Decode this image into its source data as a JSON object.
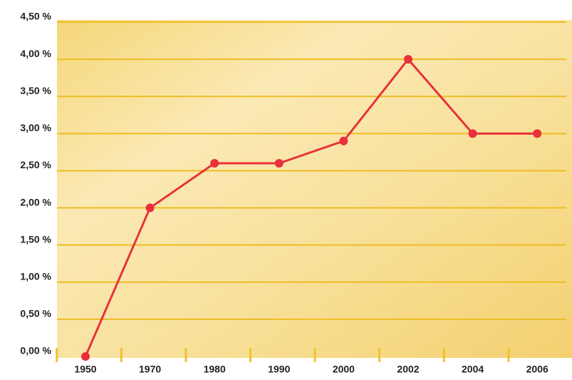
{
  "chart_data": {
    "type": "line",
    "categories": [
      "1950",
      "1970",
      "1980",
      "1990",
      "2000",
      "2002",
      "2004",
      "2006"
    ],
    "series": [
      {
        "color": "#e8313a",
        "values": [
          0,
          2.0,
          2.6,
          2.6,
          2.9,
          4.0,
          3.0,
          3.0
        ]
      }
    ],
    "ylim": [
      0,
      4.5
    ],
    "yticks": [
      {
        "value": 0,
        "label": "0,00 %"
      },
      {
        "value": 0.5,
        "label": "0,50 %"
      },
      {
        "value": 1,
        "label": "1,00 %"
      },
      {
        "value": 1.5,
        "label": "1,50 %"
      },
      {
        "value": 2,
        "label": "2,00 %"
      },
      {
        "value": 2.5,
        "label": "2,50 %"
      },
      {
        "value": 3,
        "label": "3,00 %"
      },
      {
        "value": 3.5,
        "label": "3,50 %"
      },
      {
        "value": 4,
        "label": "4,00 %"
      },
      {
        "value": 4.5,
        "label": "4,50 %"
      }
    ],
    "grid": true
  }
}
